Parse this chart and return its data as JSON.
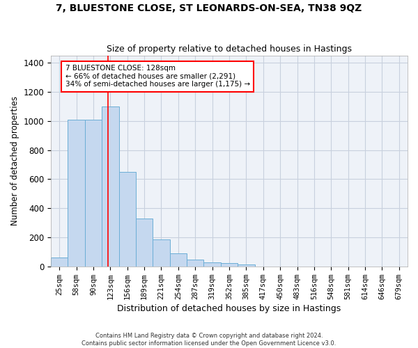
{
  "title": "7, BLUESTONE CLOSE, ST LEONARDS-ON-SEA, TN38 9QZ",
  "subtitle": "Size of property relative to detached houses in Hastings",
  "xlabel": "Distribution of detached houses by size in Hastings",
  "ylabel": "Number of detached properties",
  "bar_values": [
    60,
    1010,
    1010,
    1100,
    650,
    330,
    185,
    90,
    45,
    30,
    25,
    15,
    0,
    0,
    0,
    0,
    0,
    0,
    0,
    0,
    0
  ],
  "bar_labels": [
    "25sqm",
    "58sqm",
    "90sqm",
    "123sqm",
    "156sqm",
    "189sqm",
    "221sqm",
    "254sqm",
    "287sqm",
    "319sqm",
    "352sqm",
    "385sqm",
    "417sqm",
    "450sqm",
    "483sqm",
    "516sqm",
    "548sqm",
    "581sqm",
    "614sqm",
    "646sqm",
    "679sqm"
  ],
  "bar_color": "#c5d8ef",
  "bar_edge_color": "#6baed6",
  "vline_color": "red",
  "vline_x": 2.85,
  "ylim": [
    0,
    1450
  ],
  "yticks": [
    0,
    200,
    400,
    600,
    800,
    1000,
    1200,
    1400
  ],
  "annotation_text": "7 BLUESTONE CLOSE: 128sqm\n← 66% of detached houses are smaller (2,291)\n34% of semi-detached houses are larger (1,175) →",
  "annotation_box_color": "white",
  "annotation_box_edge": "red",
  "footer_text": "Contains HM Land Registry data © Crown copyright and database right 2024.\nContains public sector information licensed under the Open Government Licence v3.0.",
  "background_color": "#eef2f8",
  "grid_color": "#c8d0de",
  "fig_width": 6.0,
  "fig_height": 5.0
}
